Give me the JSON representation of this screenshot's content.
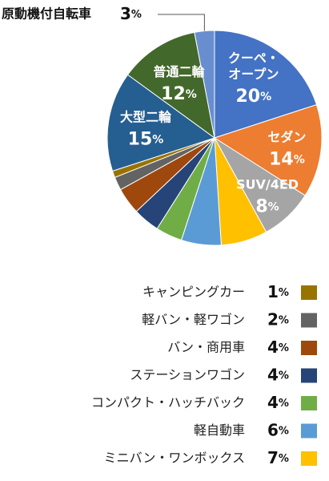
{
  "chart_data": {
    "type": "pie",
    "categories": [
      "クーペ・オープン",
      "セダン",
      "SUV/4ED",
      "ミニバン・ワンボックス",
      "軽自動車",
      "コンパクト・ハッチバック",
      "ステーションワゴン",
      "バン・商用車",
      "軽バン・軽ワゴン",
      "キャンピングカー",
      "大型二輪",
      "普通二輪",
      "原動機付自転車"
    ],
    "values": [
      20,
      14,
      8,
      7,
      6,
      4,
      4,
      4,
      2,
      1,
      15,
      12,
      3
    ],
    "value_labels": [
      "20%",
      "14%",
      "8%",
      "7%",
      "6%",
      "4%",
      "4%",
      "4%",
      "2%",
      "1%",
      "15%",
      "12%",
      "3%"
    ],
    "colors": [
      "#4472c4",
      "#ed7d31",
      "#a5a5a5",
      "#ffc000",
      "#5b9bd5",
      "#70ad47",
      "#264478",
      "#9e480e",
      "#636363",
      "#997300",
      "#255e91",
      "#43682b",
      "#698ed0"
    ]
  }
}
